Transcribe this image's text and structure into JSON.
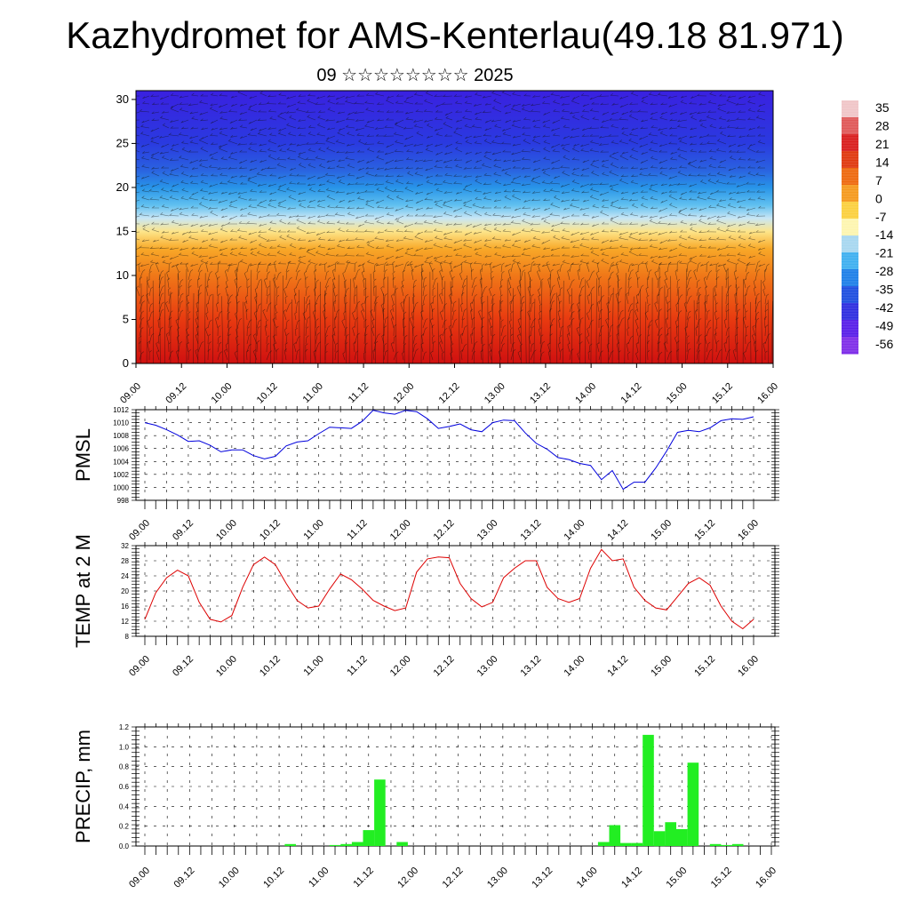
{
  "header": {
    "title": "Kazhydromet for AMS-Kenterlau(49.18 81.971)",
    "subtitle": "09 ☆☆☆☆☆☆☆☆ 2025"
  },
  "time_ticks": [
    "09.00",
    "09.12",
    "10.00",
    "10.12",
    "11.00",
    "11.12",
    "12.00",
    "12.12",
    "13.00",
    "13.12",
    "14.00",
    "14.12",
    "15.00",
    "15.12",
    "16.00"
  ],
  "chart_data": [
    {
      "type": "heatmap",
      "name": "section",
      "x_ticks": [
        "09.00",
        "09.12",
        "10.00",
        "10.12",
        "11.00",
        "11.12",
        "12.00",
        "12.12",
        "13.00",
        "13.12",
        "14.00",
        "14.12",
        "15.00",
        "15.12",
        "16.00"
      ],
      "ylim": [
        0,
        31
      ],
      "y_ticks": [
        0,
        5,
        10,
        15,
        20,
        25,
        30
      ],
      "colorbar": {
        "labels": [
          "35",
          "28",
          "21",
          "14",
          "7",
          "0",
          "-7",
          "-14",
          "-21",
          "-28",
          "-35",
          "-42",
          "-49",
          "-56"
        ],
        "colors": [
          "#f0c6c8",
          "#e05a5a",
          "#d92020",
          "#e03a10",
          "#ee6a10",
          "#f59a20",
          "#fbd040",
          "#fdf5b0",
          "#a8d8f0",
          "#40b0f0",
          "#2080e8",
          "#2050e0",
          "#3030e0",
          "#5a20e8",
          "#8030e8"
        ]
      },
      "color_levels": [
        {
          "z": 0,
          "color": "#d01010"
        },
        {
          "z": 5,
          "color": "#e83a10"
        },
        {
          "z": 10,
          "color": "#f07818"
        },
        {
          "z": 13,
          "color": "#f8a828"
        },
        {
          "z": 15,
          "color": "#fde58a"
        },
        {
          "z": 16.5,
          "color": "#c8e6f5"
        },
        {
          "z": 18,
          "color": "#60c0f0"
        },
        {
          "z": 20,
          "color": "#2894e8"
        },
        {
          "z": 22,
          "color": "#2a62e0"
        },
        {
          "z": 25,
          "color": "#2a3ae0"
        },
        {
          "z": 31,
          "color": "#3a20e0"
        }
      ]
    },
    {
      "type": "line",
      "name": "pmsl",
      "ylabel": "PMSL",
      "ylim": [
        998,
        1012
      ],
      "y_ticks": [
        998,
        1000,
        1002,
        1004,
        1006,
        1008,
        1010,
        1012
      ],
      "x_ticks": [
        "09.00",
        "09.12",
        "10.00",
        "10.12",
        "11.00",
        "11.12",
        "12.00",
        "12.12",
        "13.00",
        "13.12",
        "14.00",
        "14.12",
        "15.00",
        "15.12",
        "16.00"
      ],
      "x_hours": [
        0,
        3,
        6,
        9,
        12,
        15,
        18,
        21,
        24,
        27,
        30,
        33,
        36,
        39,
        42,
        45,
        48,
        51,
        54,
        57,
        60,
        63,
        66,
        69,
        72,
        75,
        78,
        81,
        84,
        87,
        90,
        93,
        96,
        99,
        102,
        105,
        108,
        111,
        114,
        117,
        120,
        123,
        126,
        129,
        132,
        135,
        138,
        141,
        144,
        147,
        150,
        153,
        156,
        159,
        162,
        165,
        168
      ],
      "values": [
        1010,
        1009.6,
        1008.9,
        1008.1,
        1007.1,
        1007.2,
        1006.5,
        1005.5,
        1005.8,
        1005.8,
        1004.9,
        1004.4,
        1004.8,
        1006.4,
        1007,
        1007.2,
        1008.3,
        1009.3,
        1009.2,
        1009.1,
        1010.2,
        1011.9,
        1011.5,
        1011.3,
        1011.9,
        1011.7,
        1010.6,
        1009.1,
        1009.4,
        1009.8,
        1008.9,
        1008.6,
        1010,
        1010.4,
        1010.3,
        1008.4,
        1006.8,
        1005.9,
        1004.6,
        1004.3,
        1003.7,
        1003.4,
        1001.2,
        1002.6,
        999.7,
        1000.8,
        1000.8,
        1003,
        1005.6,
        1008.5,
        1008.8,
        1008.6,
        1009.2,
        1010.3,
        1010.6,
        1010.5,
        1010.9
      ],
      "color": "#0000dd"
    },
    {
      "type": "line",
      "name": "temp",
      "ylabel": "TEMP at 2 M",
      "ylim": [
        8,
        32
      ],
      "y_ticks": [
        8,
        12,
        16,
        20,
        24,
        28,
        32
      ],
      "x_ticks": [
        "09.00",
        "09.12",
        "10.00",
        "10.12",
        "11.00",
        "11.12",
        "12.00",
        "12.12",
        "13.00",
        "13.12",
        "14.00",
        "14.12",
        "15.00",
        "15.12",
        "16.00"
      ],
      "x_hours": [
        0,
        3,
        6,
        9,
        12,
        15,
        18,
        21,
        24,
        27,
        30,
        33,
        36,
        39,
        42,
        45,
        48,
        51,
        54,
        57,
        60,
        63,
        66,
        69,
        72,
        75,
        78,
        81,
        84,
        87,
        90,
        93,
        96,
        99,
        102,
        105,
        108,
        111,
        114,
        117,
        120,
        123,
        126,
        129,
        132,
        135,
        138,
        141,
        144,
        147,
        150,
        153,
        156,
        159,
        162,
        165,
        168
      ],
      "values": [
        12.5,
        19.5,
        23.5,
        25.5,
        24,
        17,
        12.5,
        11.8,
        13.5,
        21,
        27,
        29,
        27,
        22,
        17.5,
        15.5,
        16,
        20.5,
        24.5,
        23,
        20.5,
        17.5,
        16,
        14.8,
        15.5,
        25,
        28.5,
        29,
        28.8,
        22,
        18,
        15.8,
        17,
        23.5,
        26,
        28,
        28,
        21,
        18,
        17,
        18,
        26,
        31,
        28,
        28.5,
        21,
        17.5,
        15.5,
        15,
        18.5,
        22,
        23.5,
        21.5,
        16,
        12,
        10,
        12.5
      ],
      "color": "#dd0000"
    },
    {
      "type": "bar",
      "name": "precip",
      "ylabel": "PRECIP, mm",
      "ylim": [
        0,
        1.2
      ],
      "y_ticks": [
        "0.0",
        "0.2",
        "0.4",
        "0.6",
        "0.8",
        "1.0",
        "1.2"
      ],
      "x_ticks": [
        "09.00",
        "09.12",
        "10.00",
        "10.12",
        "11.00",
        "11.12",
        "12.00",
        "12.12",
        "13.00",
        "13.12",
        "14.00",
        "14.12",
        "15.00",
        "15.12",
        "16.00"
      ],
      "x_hours": [
        39,
        51,
        54,
        57,
        60,
        63,
        69,
        123,
        126,
        129,
        132,
        135,
        138,
        141,
        144,
        147,
        153,
        156,
        159
      ],
      "values": [
        0.02,
        0.01,
        0.02,
        0.04,
        0.16,
        0.67,
        0.04,
        0.04,
        0.21,
        0.03,
        0.03,
        1.12,
        0.15,
        0.24,
        0.17,
        0.84,
        0.02,
        0.01,
        0.02
      ],
      "color": "#22ee22"
    }
  ]
}
